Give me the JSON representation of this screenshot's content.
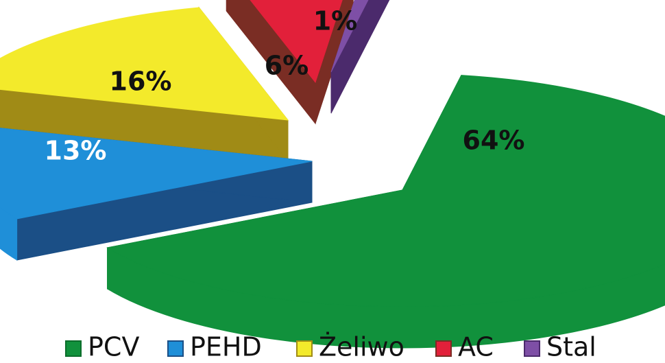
{
  "chart_data": {
    "type": "pie",
    "slices": [
      {
        "label": "PCV",
        "value": 64,
        "display": "64%",
        "color": "#11913c",
        "dark": "#0b6d2b",
        "text_color": "#111111"
      },
      {
        "label": "PEHD",
        "value": 13,
        "display": "13%",
        "color": "#1f8fd8",
        "dark": "#1b4f86",
        "text_color": "#ffffff"
      },
      {
        "label": "Żeliwo",
        "value": 16,
        "display": "16%",
        "color": "#f3ea2b",
        "dark": "#a08b16",
        "text_color": "#111111"
      },
      {
        "label": "AC",
        "value": 6,
        "display": "6%",
        "color": "#e2203a",
        "dark": "#7a2d24",
        "text_color": "#111111"
      },
      {
        "label": "Stal",
        "value": 1,
        "display": "1%",
        "color": "#7e4fa6",
        "dark": "#4b2a6c",
        "text_color": "#111111"
      }
    ],
    "legend": {
      "position": "bottom"
    }
  }
}
